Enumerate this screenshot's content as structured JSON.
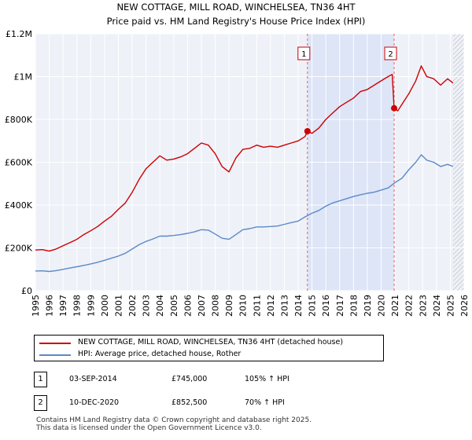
{
  "chart_data": {
    "type": "line",
    "title": "NEW COTTAGE, MILL ROAD, WINCHELSEA, TN36 4HT",
    "subtitle": "Price paid vs. HM Land Registry's House Price Index (HPI)",
    "xlim": [
      1995,
      2026
    ],
    "ylim": [
      0,
      1200000
    ],
    "x_ticks": [
      1995,
      1996,
      1997,
      1998,
      1999,
      2000,
      2001,
      2002,
      2003,
      2004,
      2005,
      2006,
      2007,
      2008,
      2009,
      2010,
      2011,
      2012,
      2013,
      2014,
      2015,
      2016,
      2017,
      2018,
      2019,
      2020,
      2021,
      2022,
      2023,
      2024,
      2025,
      2026
    ],
    "y_ticks": [
      0,
      200000,
      400000,
      600000,
      800000,
      1000000,
      1200000
    ],
    "y_tick_labels": [
      "£0",
      "£200K",
      "£400K",
      "£600K",
      "£800K",
      "£1M",
      "£1.2M"
    ],
    "grid": true,
    "shaded_range": [
      2014.67,
      2020.94
    ],
    "series": [
      {
        "name": "NEW COTTAGE, MILL ROAD, WINCHELSEA, TN36 4HT (detached house)",
        "color": "#cc0000",
        "x": [
          1995.0,
          1995.5,
          1996.0,
          1996.5,
          1997.0,
          1997.5,
          1998.0,
          1998.5,
          1999.0,
          1999.5,
          2000.0,
          2000.5,
          2001.0,
          2001.5,
          2002.0,
          2002.5,
          2003.0,
          2003.5,
          2004.0,
          2004.5,
          2005.0,
          2005.5,
          2006.0,
          2006.5,
          2007.0,
          2007.5,
          2008.0,
          2008.5,
          2009.0,
          2009.5,
          2010.0,
          2010.5,
          2011.0,
          2011.5,
          2012.0,
          2012.5,
          2013.0,
          2013.5,
          2014.0,
          2014.5,
          2014.67,
          2015.0,
          2015.5,
          2016.0,
          2016.5,
          2017.0,
          2017.5,
          2018.0,
          2018.5,
          2019.0,
          2019.5,
          2020.0,
          2020.5,
          2020.8,
          2020.94,
          2021.2,
          2021.5,
          2022.0,
          2022.5,
          2022.9,
          2023.3,
          2023.8,
          2024.3,
          2024.8,
          2025.2
        ],
        "values": [
          190000,
          192000,
          185000,
          195000,
          210000,
          225000,
          240000,
          262000,
          280000,
          300000,
          325000,
          348000,
          380000,
          410000,
          460000,
          520000,
          570000,
          600000,
          630000,
          610000,
          615000,
          625000,
          640000,
          665000,
          690000,
          680000,
          640000,
          580000,
          555000,
          620000,
          660000,
          665000,
          680000,
          670000,
          675000,
          670000,
          680000,
          690000,
          700000,
          720000,
          745000,
          735000,
          760000,
          800000,
          830000,
          860000,
          880000,
          900000,
          930000,
          940000,
          960000,
          980000,
          1000000,
          1010000,
          852500,
          840000,
          870000,
          920000,
          980000,
          1050000,
          1000000,
          990000,
          960000,
          990000,
          970000
        ]
      },
      {
        "name": "HPI: Average price, detached house, Rother",
        "color": "#5b8ac6",
        "x": [
          1995.0,
          1995.5,
          1996.0,
          1996.5,
          1997.0,
          1997.5,
          1998.0,
          1998.5,
          1999.0,
          1999.5,
          2000.0,
          2000.5,
          2001.0,
          2001.5,
          2002.0,
          2002.5,
          2003.0,
          2003.5,
          2004.0,
          2004.5,
          2005.0,
          2005.5,
          2006.0,
          2006.5,
          2007.0,
          2007.5,
          2008.0,
          2008.5,
          2009.0,
          2009.5,
          2010.0,
          2010.5,
          2011.0,
          2011.5,
          2012.0,
          2012.5,
          2013.0,
          2013.5,
          2014.0,
          2014.5,
          2015.0,
          2015.5,
          2016.0,
          2016.5,
          2017.0,
          2017.5,
          2018.0,
          2018.5,
          2019.0,
          2019.5,
          2020.0,
          2020.5,
          2021.0,
          2021.5,
          2022.0,
          2022.5,
          2022.9,
          2023.3,
          2023.8,
          2024.3,
          2024.8,
          2025.2
        ],
        "values": [
          92000,
          93000,
          90000,
          94000,
          100000,
          106000,
          112000,
          118000,
          125000,
          133000,
          142000,
          152000,
          162000,
          175000,
          195000,
          215000,
          230000,
          242000,
          255000,
          255000,
          258000,
          262000,
          268000,
          275000,
          285000,
          283000,
          265000,
          245000,
          240000,
          262000,
          285000,
          290000,
          298000,
          298000,
          300000,
          302000,
          310000,
          318000,
          325000,
          345000,
          362000,
          375000,
          395000,
          410000,
          420000,
          430000,
          440000,
          448000,
          455000,
          460000,
          470000,
          480000,
          505000,
          525000,
          565000,
          600000,
          635000,
          610000,
          600000,
          580000,
          590000,
          580000
        ]
      }
    ],
    "sales": [
      {
        "marker": "1",
        "x": 2014.67,
        "value": 745000
      },
      {
        "marker": "2",
        "x": 2020.94,
        "value": 852500
      }
    ]
  },
  "legend": {
    "property_label": "NEW COTTAGE, MILL ROAD, WINCHELSEA, TN36 4HT (detached house)",
    "hpi_label": "HPI: Average price, detached house, Rother",
    "property_color": "#cc0000",
    "hpi_color": "#5b8ac6"
  },
  "sales_table": [
    {
      "num": "1",
      "date": "03-SEP-2014",
      "price": "£745,000",
      "hpi": "105% ↑ HPI"
    },
    {
      "num": "2",
      "date": "10-DEC-2020",
      "price": "£852,500",
      "hpi": "70% ↑ HPI"
    }
  ],
  "footer": {
    "line1": "Contains HM Land Registry data © Crown copyright and database right 2025.",
    "line2": "This data is licensed under the Open Government Licence v3.0."
  }
}
